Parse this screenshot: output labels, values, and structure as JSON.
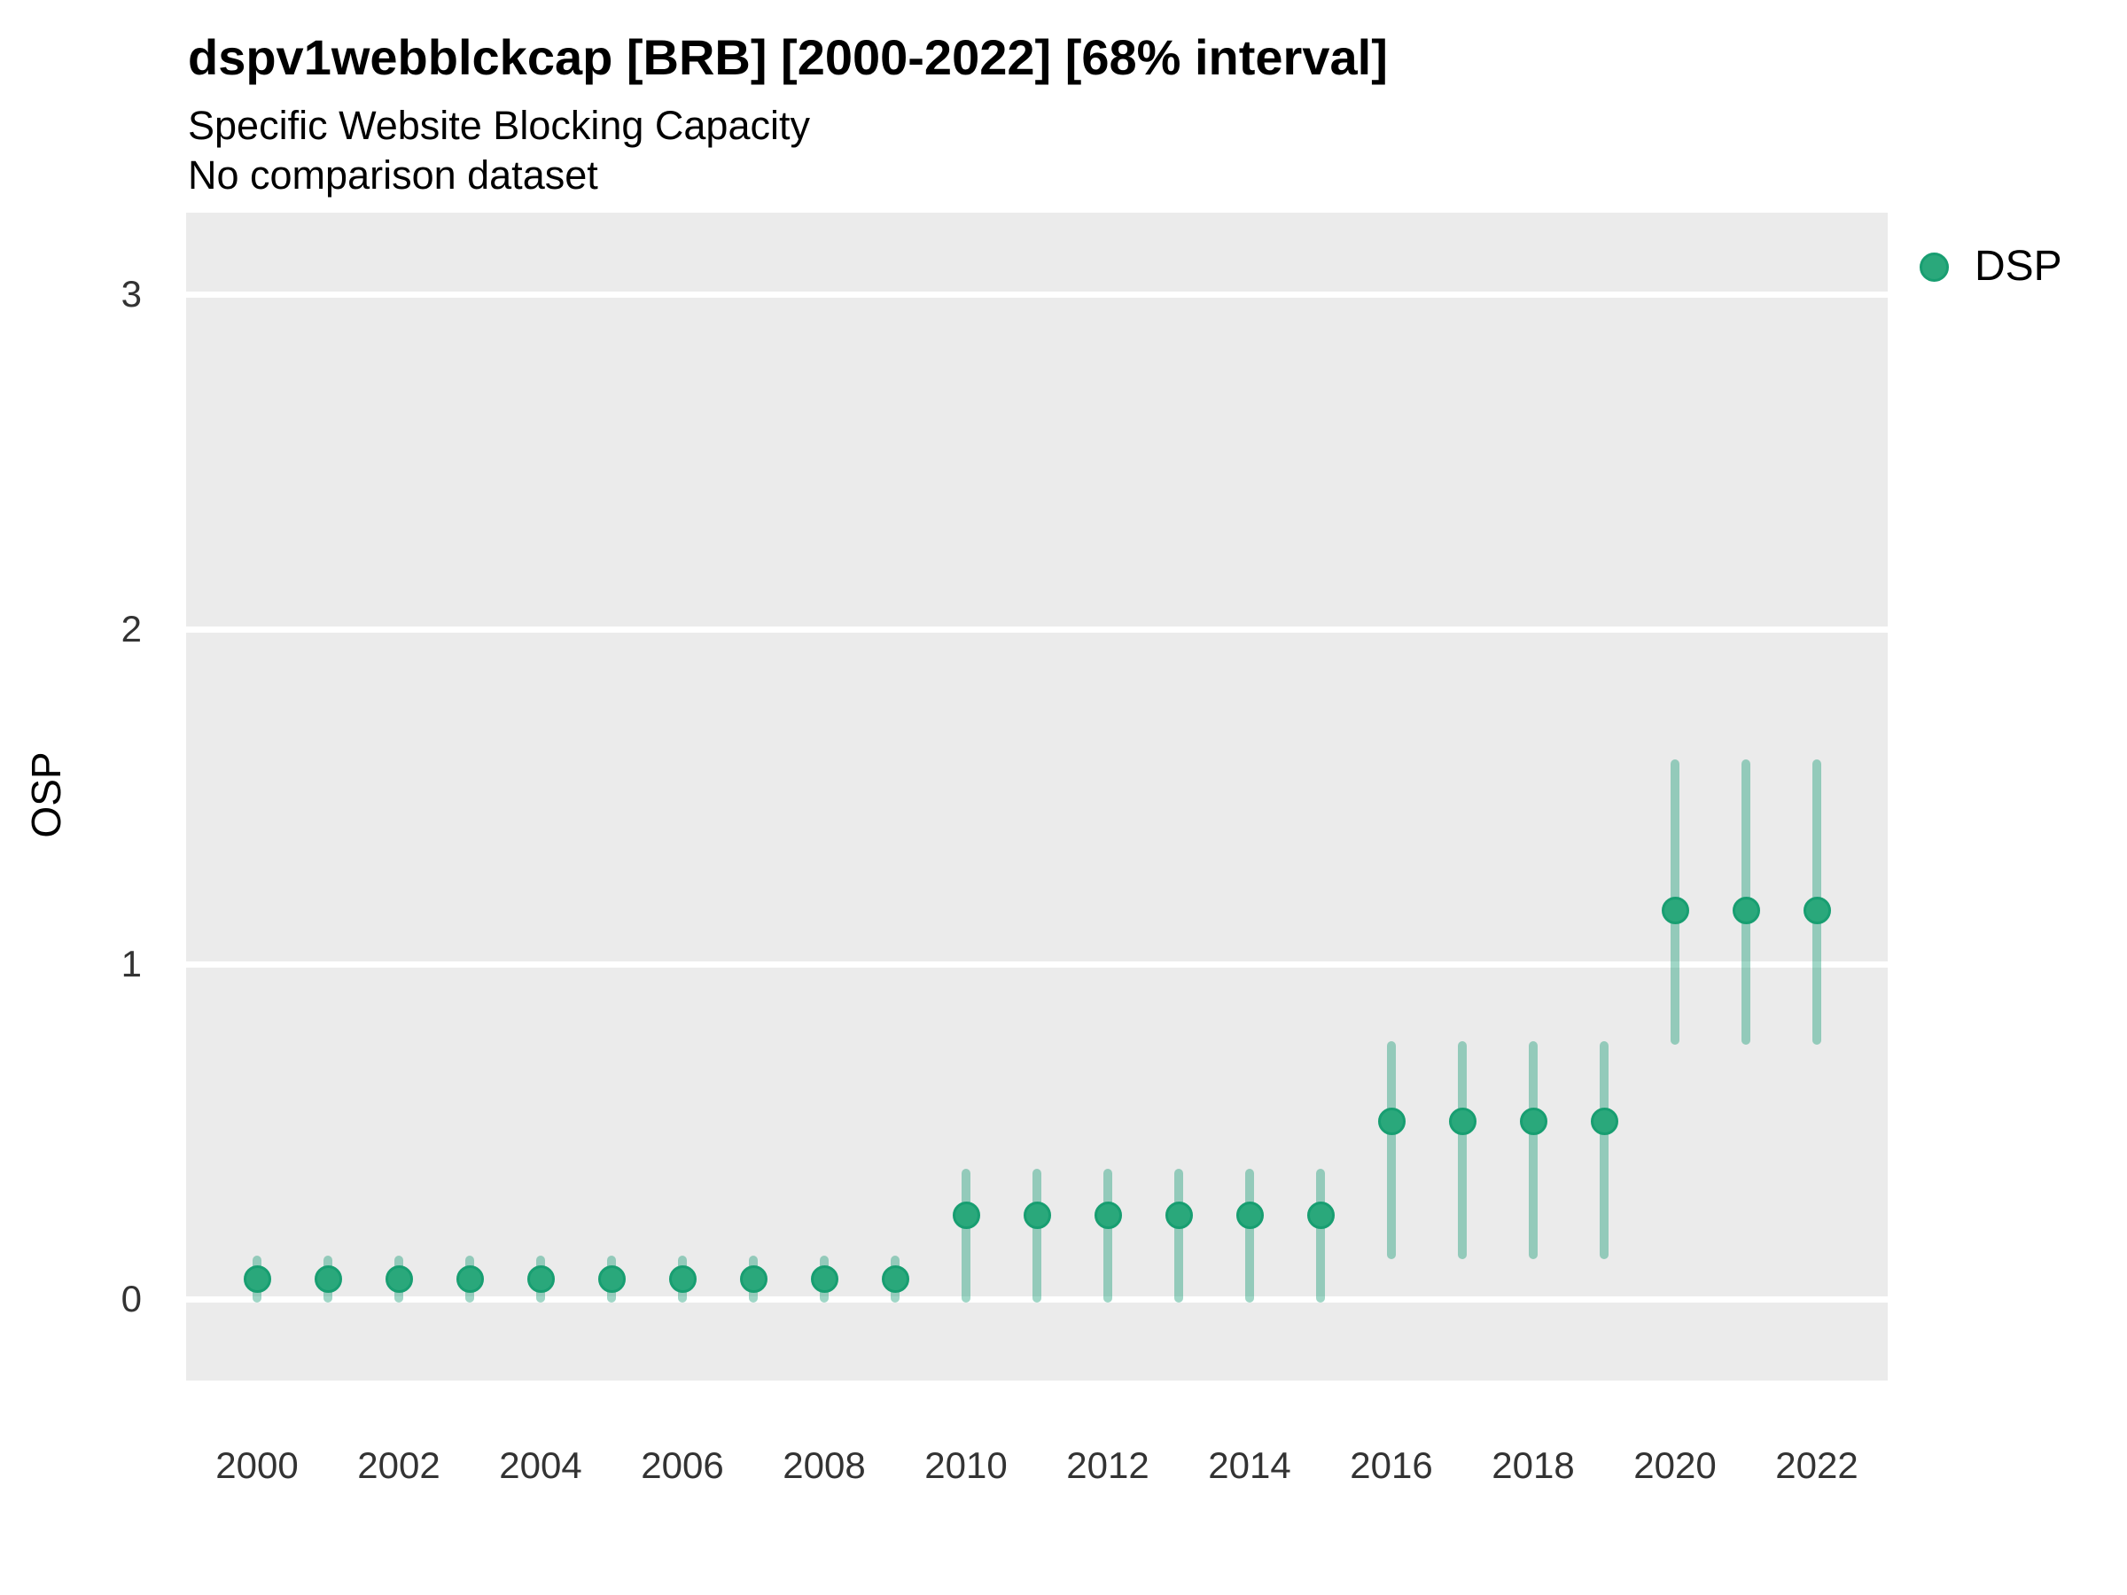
{
  "header": {
    "title": "dspv1webblckcap [BRB] [2000-2022] [68% interval]",
    "subtitle": "Specific Website Blocking Capacity",
    "subtitle2": "No comparison dataset"
  },
  "style": {
    "point_fill": "#2aa87b",
    "point_stroke": "#189e71",
    "interval_color": "#1b9e77",
    "interval_opacity": 0.42,
    "panel_bg": "#ebebeb",
    "grid_color": "#ffffff",
    "title_color": "#000000",
    "axis_text_color": "#333333"
  },
  "chart_data": {
    "type": "scatter",
    "geometry": "pointrange",
    "title": "dspv1webblckcap [BRB] [2000-2022] [68% interval]",
    "subtitle": "Specific Website Blocking Capacity",
    "subtitle2": "No comparison dataset",
    "xlabel": "",
    "ylabel": "OSP",
    "interval_level": "68%",
    "grid": "horizontal-major-only",
    "legend_position": "top-right",
    "legend": [
      {
        "name": "DSP"
      }
    ],
    "x_ticks": [
      2000,
      2002,
      2004,
      2006,
      2008,
      2010,
      2012,
      2014,
      2016,
      2018,
      2020,
      2022
    ],
    "y_ticks": [
      0,
      1,
      2,
      3
    ],
    "xlim": [
      1998.9,
      2023.1
    ],
    "ylim": [
      -0.24,
      3.24
    ],
    "series": [
      {
        "name": "DSP",
        "points": [
          {
            "x": 2000,
            "y": 0.06,
            "lo": -0.01,
            "hi": 0.13
          },
          {
            "x": 2001,
            "y": 0.06,
            "lo": -0.01,
            "hi": 0.13
          },
          {
            "x": 2002,
            "y": 0.06,
            "lo": -0.01,
            "hi": 0.13
          },
          {
            "x": 2003,
            "y": 0.06,
            "lo": -0.01,
            "hi": 0.13
          },
          {
            "x": 2004,
            "y": 0.06,
            "lo": -0.01,
            "hi": 0.13
          },
          {
            "x": 2005,
            "y": 0.06,
            "lo": -0.01,
            "hi": 0.13
          },
          {
            "x": 2006,
            "y": 0.06,
            "lo": -0.01,
            "hi": 0.13
          },
          {
            "x": 2007,
            "y": 0.06,
            "lo": -0.01,
            "hi": 0.13
          },
          {
            "x": 2008,
            "y": 0.06,
            "lo": -0.01,
            "hi": 0.13
          },
          {
            "x": 2009,
            "y": 0.06,
            "lo": -0.01,
            "hi": 0.13
          },
          {
            "x": 2010,
            "y": 0.25,
            "lo": -0.01,
            "hi": 0.39
          },
          {
            "x": 2011,
            "y": 0.25,
            "lo": -0.01,
            "hi": 0.39
          },
          {
            "x": 2012,
            "y": 0.25,
            "lo": -0.01,
            "hi": 0.39
          },
          {
            "x": 2013,
            "y": 0.25,
            "lo": -0.01,
            "hi": 0.39
          },
          {
            "x": 2014,
            "y": 0.25,
            "lo": -0.01,
            "hi": 0.39
          },
          {
            "x": 2015,
            "y": 0.25,
            "lo": -0.01,
            "hi": 0.39
          },
          {
            "x": 2016,
            "y": 0.53,
            "lo": 0.12,
            "hi": 0.77
          },
          {
            "x": 2017,
            "y": 0.53,
            "lo": 0.12,
            "hi": 0.77
          },
          {
            "x": 2018,
            "y": 0.53,
            "lo": 0.12,
            "hi": 0.77
          },
          {
            "x": 2019,
            "y": 0.53,
            "lo": 0.12,
            "hi": 0.77
          },
          {
            "x": 2020,
            "y": 1.16,
            "lo": 0.76,
            "hi": 1.61
          },
          {
            "x": 2021,
            "y": 1.16,
            "lo": 0.76,
            "hi": 1.61
          },
          {
            "x": 2022,
            "y": 1.16,
            "lo": 0.76,
            "hi": 1.61
          }
        ]
      }
    ]
  }
}
